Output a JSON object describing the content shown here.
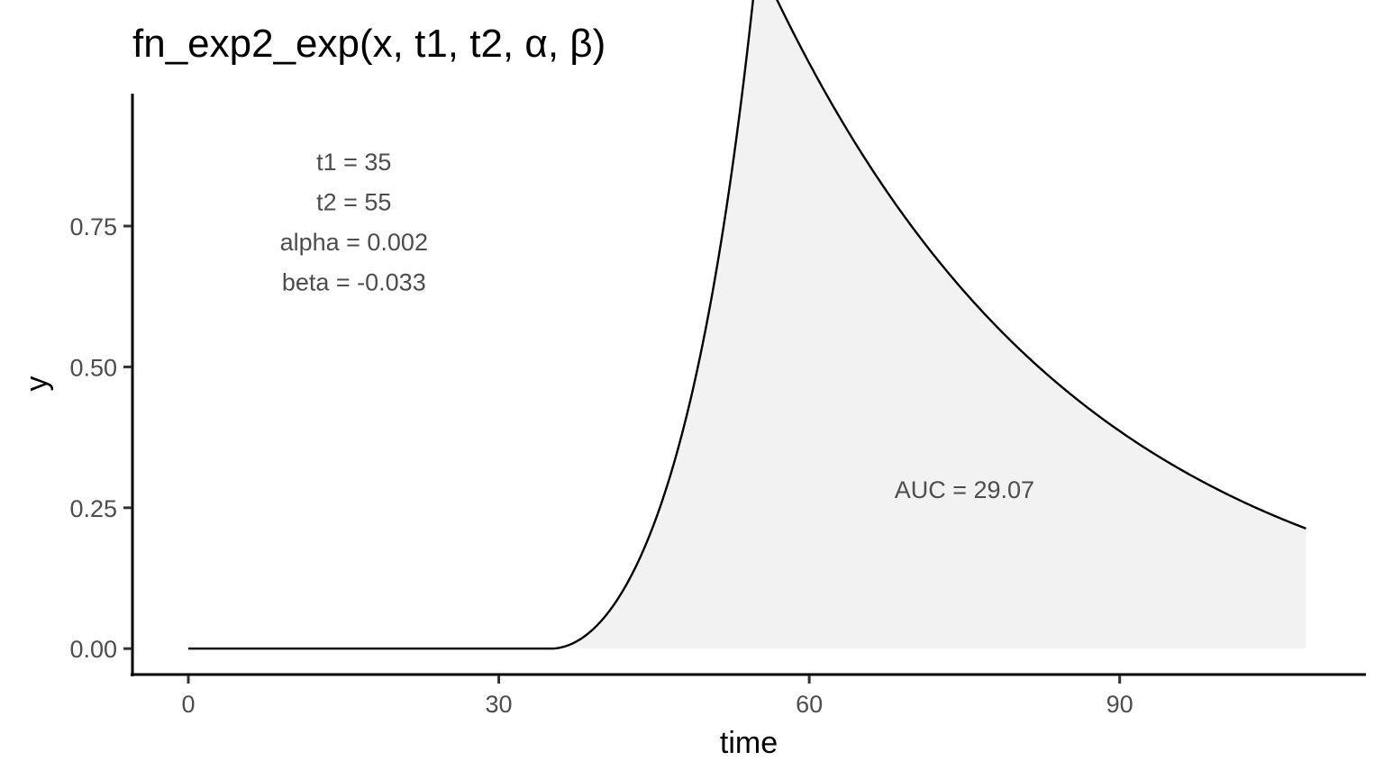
{
  "chart_data": {
    "type": "area",
    "title": "fn_exp2_exp(x, t1, t2, α, β)",
    "xlabel": "time",
    "ylabel": "y",
    "xlim": [
      -5.4,
      113.8
    ],
    "ylim": [
      -0.046,
      0.985
    ],
    "x_ticks": [
      0,
      30,
      60,
      90
    ],
    "x_tick_labels": [
      "0",
      "30",
      "60",
      "90"
    ],
    "y_ticks": [
      0,
      0.25,
      0.5,
      0.75
    ],
    "y_tick_labels": [
      "0.00",
      "0.25",
      "0.50",
      "0.75"
    ],
    "grid": false,
    "params": {
      "t1": 35,
      "t2": 55,
      "alpha": 0.002,
      "beta": -0.033,
      "x_max": 108
    },
    "annotations": {
      "params": [
        "t1 = 35",
        "t2 = 55",
        "alpha = 0.002",
        "beta = -0.033"
      ],
      "params_anchor": {
        "x": 16,
        "y_top": 0.865,
        "y_step": 0.071
      },
      "auc": "AUC = 29.07",
      "auc_anchor": {
        "x": 75,
        "y": 0.283
      }
    },
    "colors": {
      "line": "#000000",
      "fill": "#f2f2f2"
    }
  }
}
